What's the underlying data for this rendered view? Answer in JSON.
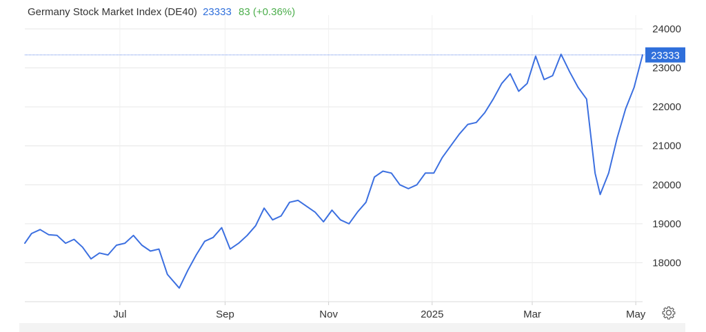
{
  "header": {
    "title": "Germany Stock Market Index (DE40)",
    "last_value": "23333",
    "change": "83 (+0.36%)"
  },
  "colors": {
    "line": "#3b6fe0",
    "change_positive": "#4cae4c",
    "value_tag_bg": "#2f6fdb",
    "grid": "#e6e6e6",
    "axis_text": "#333333"
  },
  "settings_icon": "gear-icon",
  "chart_data": {
    "type": "line",
    "title": "Germany Stock Market Index (DE40)",
    "xlabel": "",
    "ylabel": "",
    "grid": true,
    "legend": "none",
    "ylim": [
      17000,
      24000
    ],
    "y_ticks": [
      18000,
      19000,
      20000,
      21000,
      22000,
      23000,
      24000
    ],
    "x_ticks": [
      "Jul",
      "Sep",
      "Nov",
      "2025",
      "Mar",
      "May"
    ],
    "x_tick_dates": [
      "2024-07-01",
      "2024-09-01",
      "2024-11-01",
      "2025-01-01",
      "2025-03-01",
      "2025-05-01"
    ],
    "x_range": [
      "2024-05-06",
      "2025-05-05"
    ],
    "last_value": 23333,
    "x": [
      "2024-05-06",
      "2024-05-10",
      "2024-05-15",
      "2024-05-20",
      "2024-05-25",
      "2024-05-30",
      "2024-06-04",
      "2024-06-09",
      "2024-06-14",
      "2024-06-19",
      "2024-06-24",
      "2024-06-29",
      "2024-07-04",
      "2024-07-09",
      "2024-07-14",
      "2024-07-19",
      "2024-07-24",
      "2024-07-29",
      "2024-08-05",
      "2024-08-10",
      "2024-08-15",
      "2024-08-20",
      "2024-08-25",
      "2024-08-30",
      "2024-09-04",
      "2024-09-09",
      "2024-09-14",
      "2024-09-19",
      "2024-09-24",
      "2024-09-29",
      "2024-10-04",
      "2024-10-09",
      "2024-10-14",
      "2024-10-19",
      "2024-10-24",
      "2024-10-29",
      "2024-11-03",
      "2024-11-08",
      "2024-11-13",
      "2024-11-18",
      "2024-11-23",
      "2024-11-28",
      "2024-12-03",
      "2024-12-08",
      "2024-12-13",
      "2024-12-18",
      "2024-12-23",
      "2024-12-28",
      "2025-01-02",
      "2025-01-07",
      "2025-01-12",
      "2025-01-17",
      "2025-01-22",
      "2025-01-27",
      "2025-02-01",
      "2025-02-06",
      "2025-02-11",
      "2025-02-16",
      "2025-02-21",
      "2025-02-26",
      "2025-03-03",
      "2025-03-08",
      "2025-03-13",
      "2025-03-18",
      "2025-03-23",
      "2025-03-28",
      "2025-04-02",
      "2025-04-07",
      "2025-04-10",
      "2025-04-15",
      "2025-04-20",
      "2025-04-25",
      "2025-04-30",
      "2025-05-05"
    ],
    "series": [
      {
        "values": [
          18500,
          18750,
          18850,
          18720,
          18700,
          18500,
          18600,
          18400,
          18100,
          18250,
          18200,
          18450,
          18500,
          18700,
          18450,
          18300,
          18350,
          17700,
          17350,
          17800,
          18200,
          18550,
          18650,
          18900,
          18350,
          18500,
          18700,
          18950,
          19400,
          19100,
          19200,
          19550,
          19600,
          19450,
          19300,
          19050,
          19350,
          19100,
          19000,
          19300,
          19550,
          20200,
          20350,
          20300,
          20000,
          19900,
          20000,
          20300,
          20300,
          20700,
          21000,
          21300,
          21550,
          21600,
          21850,
          22200,
          22600,
          22850,
          22400,
          22600,
          23300,
          22700,
          22800,
          23350,
          22900,
          22500,
          22200,
          20300,
          19750,
          20300,
          21200,
          21950,
          22500,
          23333
        ]
      }
    ]
  }
}
